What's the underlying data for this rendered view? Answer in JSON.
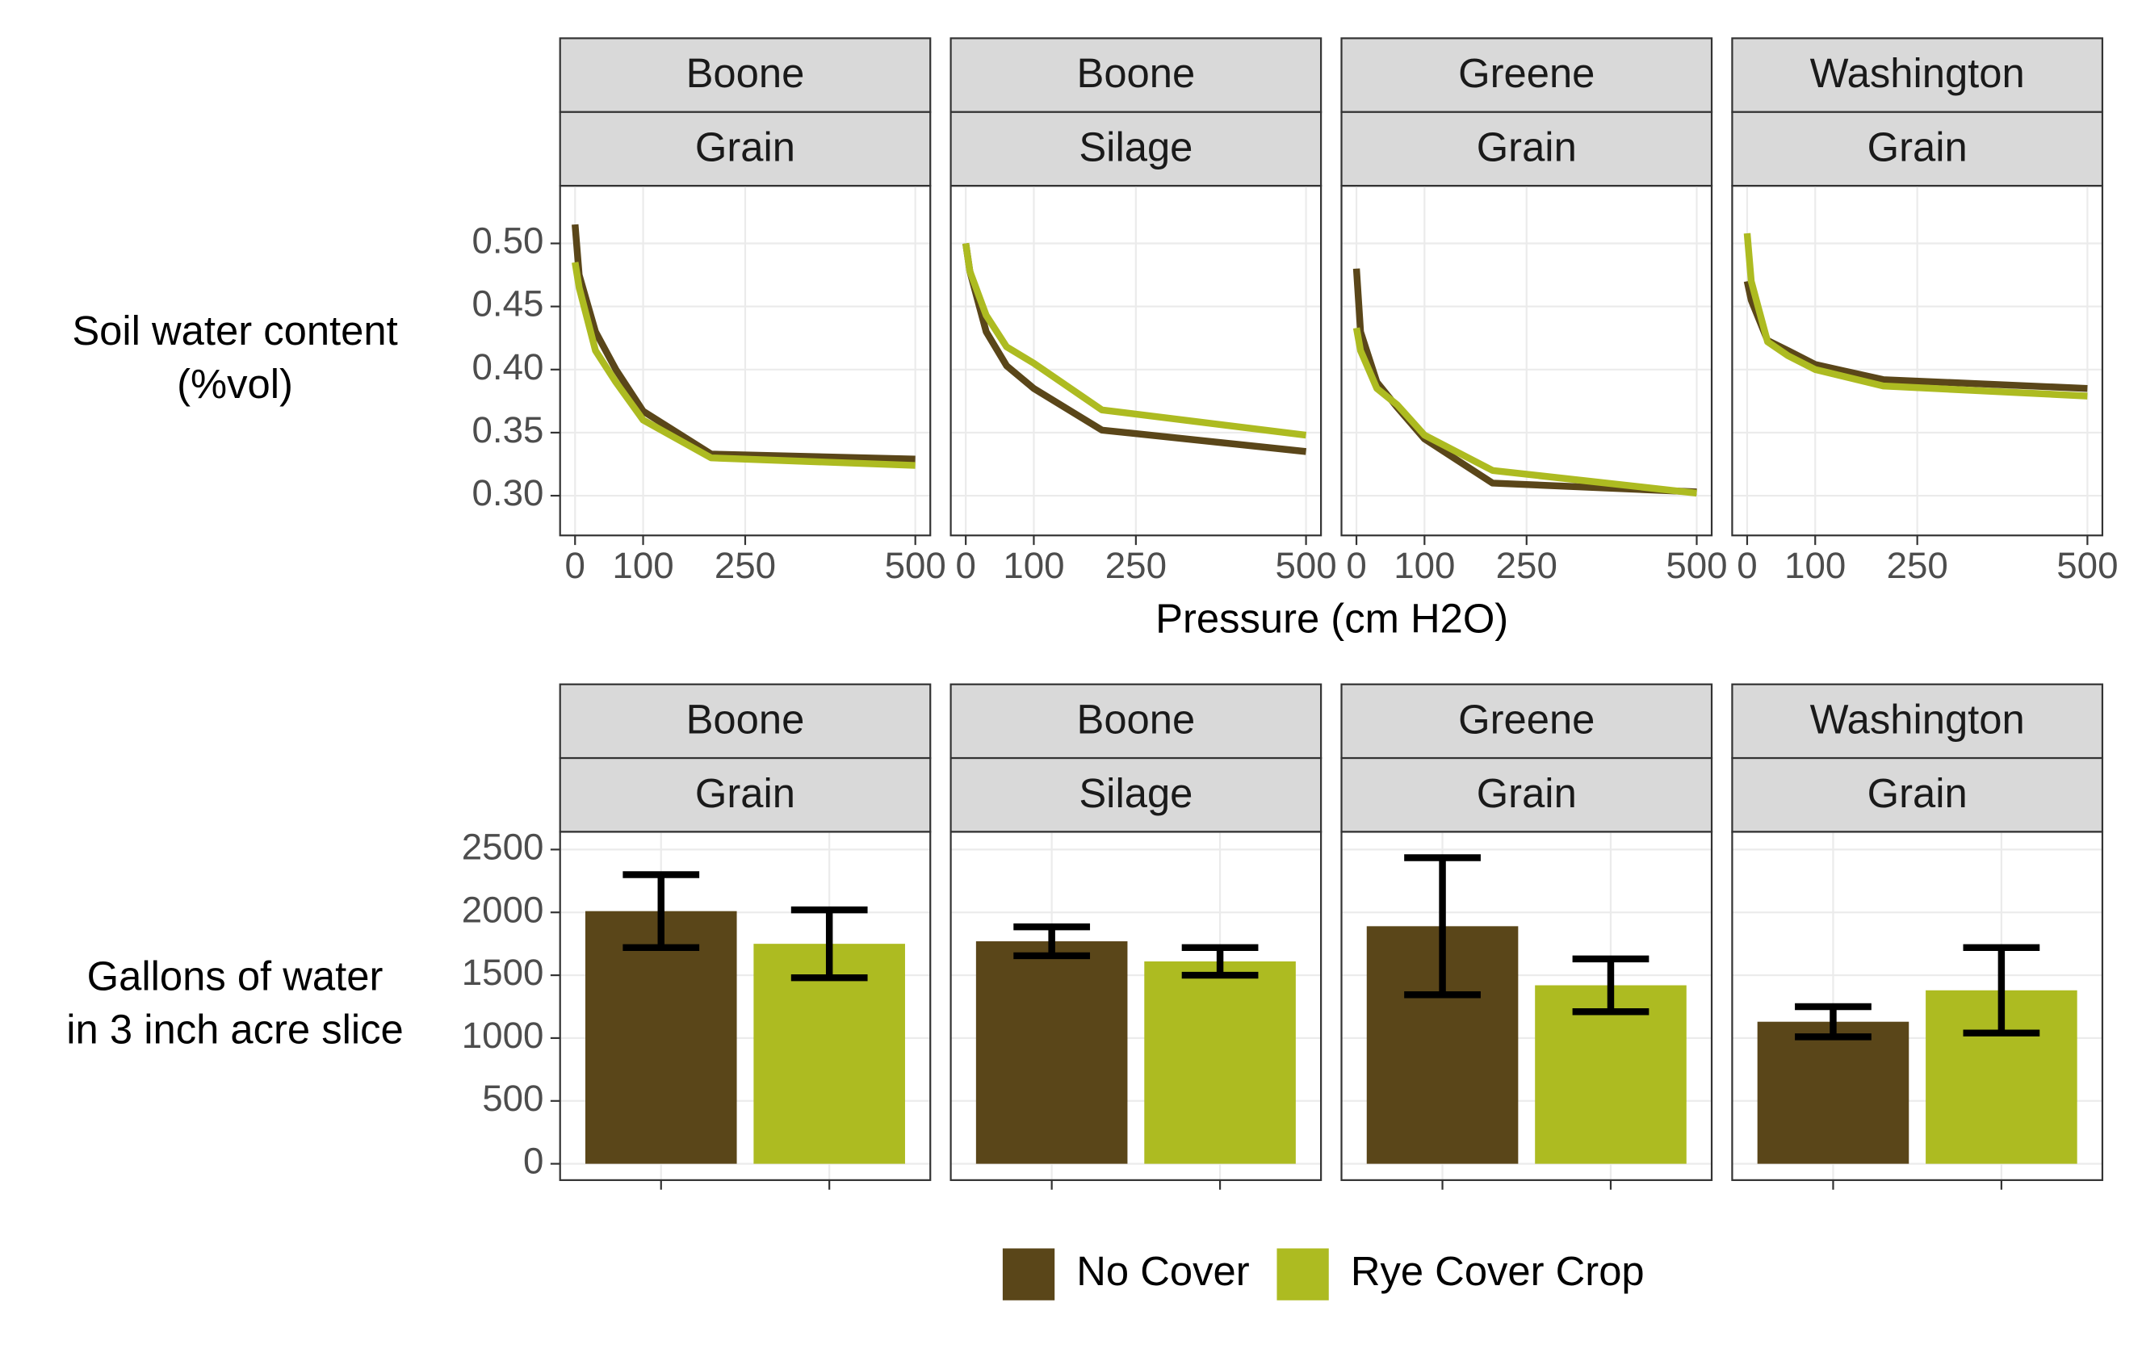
{
  "chart_data": [
    {
      "type": "line",
      "y_label": [
        "Soil water content",
        "(%vol)"
      ],
      "x_label": "Pressure (cm H2O)",
      "xlim": [
        -22,
        522
      ],
      "xticks": [
        0,
        100,
        250,
        500
      ],
      "ylim": [
        0.2685,
        0.5457
      ],
      "yticks": [
        {
          "value": 0.3,
          "label": "0.30"
        },
        {
          "value": 0.35,
          "label": "0.35"
        },
        {
          "value": 0.4,
          "label": "0.40"
        },
        {
          "value": 0.45,
          "label": "0.45"
        },
        {
          "value": 0.5,
          "label": "0.50"
        }
      ],
      "grid": true,
      "colors": [
        "#5a4619",
        "#adbb21"
      ],
      "x": [
        0,
        6,
        30,
        60,
        100,
        200,
        500
      ],
      "panels": [
        {
          "facet": [
            "Boone",
            "Grain"
          ],
          "series": [
            {
              "values": [
                0.515,
                0.475,
                0.43,
                0.4,
                0.367,
                0.333,
                0.329
              ]
            },
            {
              "values": [
                0.485,
                0.465,
                0.415,
                0.39,
                0.36,
                0.33,
                0.324
              ]
            }
          ]
        },
        {
          "facet": [
            "Boone",
            "Silage"
          ],
          "series": [
            {
              "values": [
                0.5,
                0.478,
                0.43,
                0.403,
                0.385,
                0.352,
                0.335
              ]
            },
            {
              "values": [
                0.5,
                0.478,
                0.443,
                0.418,
                0.405,
                0.368,
                0.348
              ]
            }
          ]
        },
        {
          "facet": [
            "Greene",
            "Grain"
          ],
          "series": [
            {
              "values": [
                0.48,
                0.43,
                0.39,
                0.37,
                0.345,
                0.31,
                0.303
              ]
            },
            {
              "values": [
                0.433,
                0.415,
                0.385,
                0.372,
                0.348,
                0.32,
                0.302
              ]
            }
          ]
        },
        {
          "facet": [
            "Washington",
            "Grain"
          ],
          "series": [
            {
              "values": [
                0.47,
                0.455,
                0.423,
                0.415,
                0.404,
                0.392,
                0.385
              ]
            },
            {
              "values": [
                0.508,
                0.47,
                0.422,
                0.411,
                0.4,
                0.387,
                0.379
              ]
            }
          ]
        }
      ]
    },
    {
      "type": "bar",
      "y_label": [
        "Gallons of water",
        "in 3 inch acre slice"
      ],
      "ylim": [
        -130,
        2641
      ],
      "yticks": [
        0,
        500,
        1000,
        1500,
        2000,
        2500
      ],
      "grid": true,
      "facets": [
        [
          "Boone",
          "Grain"
        ],
        [
          "Boone",
          "Silage"
        ],
        [
          "Greene",
          "Grain"
        ],
        [
          "Washington",
          "Grain"
        ]
      ],
      "series": [
        {
          "name": "No Cover",
          "color": "#5a4619",
          "values": [
            2010,
            1770,
            1890,
            1130
          ],
          "errors": [
            290,
            115,
            545,
            120
          ]
        },
        {
          "name": "Rye Cover Crop",
          "color": "#adbb21",
          "values": [
            1750,
            1610,
            1420,
            1380
          ],
          "errors": [
            270,
            110,
            210,
            340
          ]
        }
      ],
      "legend": "bottom"
    }
  ]
}
